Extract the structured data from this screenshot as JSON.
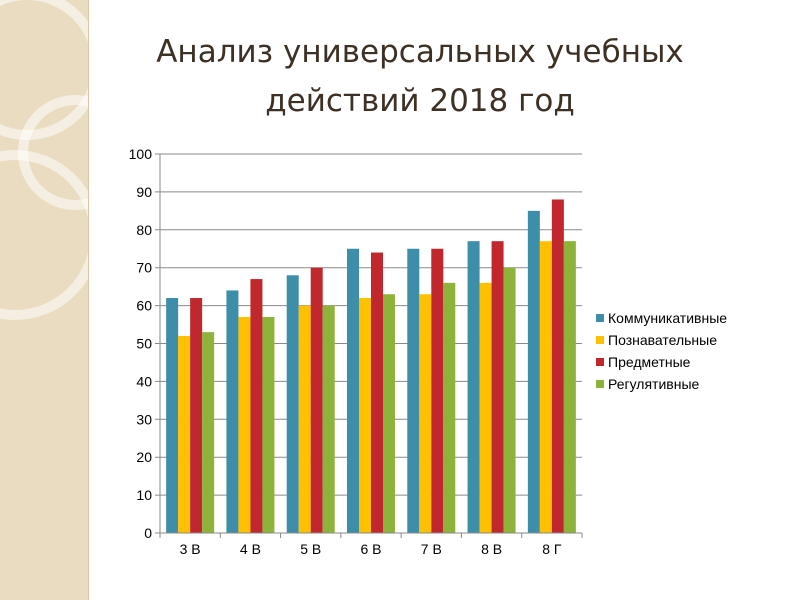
{
  "slide": {
    "title_line1": "Анализ универсальных учебных",
    "title_line2": "действий 2018 год"
  },
  "chart_data": {
    "type": "bar",
    "categories": [
      "3 В",
      "4 В",
      "5 В",
      "6 В",
      "7 В",
      "8 В",
      "8 Г"
    ],
    "ylim": [
      0,
      100
    ],
    "yticks": [
      0,
      10,
      20,
      30,
      40,
      50,
      60,
      70,
      80,
      90,
      100
    ],
    "grid": true,
    "legend_position": "right",
    "series": [
      {
        "name": "Коммуникативные",
        "color": "#3d8ea8",
        "values": [
          62,
          64,
          68,
          75,
          75,
          77,
          85
        ]
      },
      {
        "name": "Познавательные",
        "color": "#ffc000",
        "values": [
          52,
          57,
          60,
          62,
          63,
          66,
          77
        ]
      },
      {
        "name": "Предметные",
        "color": "#c0282e",
        "values": [
          62,
          67,
          70,
          74,
          75,
          77,
          88
        ]
      },
      {
        "name": "Регулятивные",
        "color": "#8db33a",
        "values": [
          53,
          57,
          60,
          63,
          66,
          70,
          77
        ]
      }
    ]
  }
}
